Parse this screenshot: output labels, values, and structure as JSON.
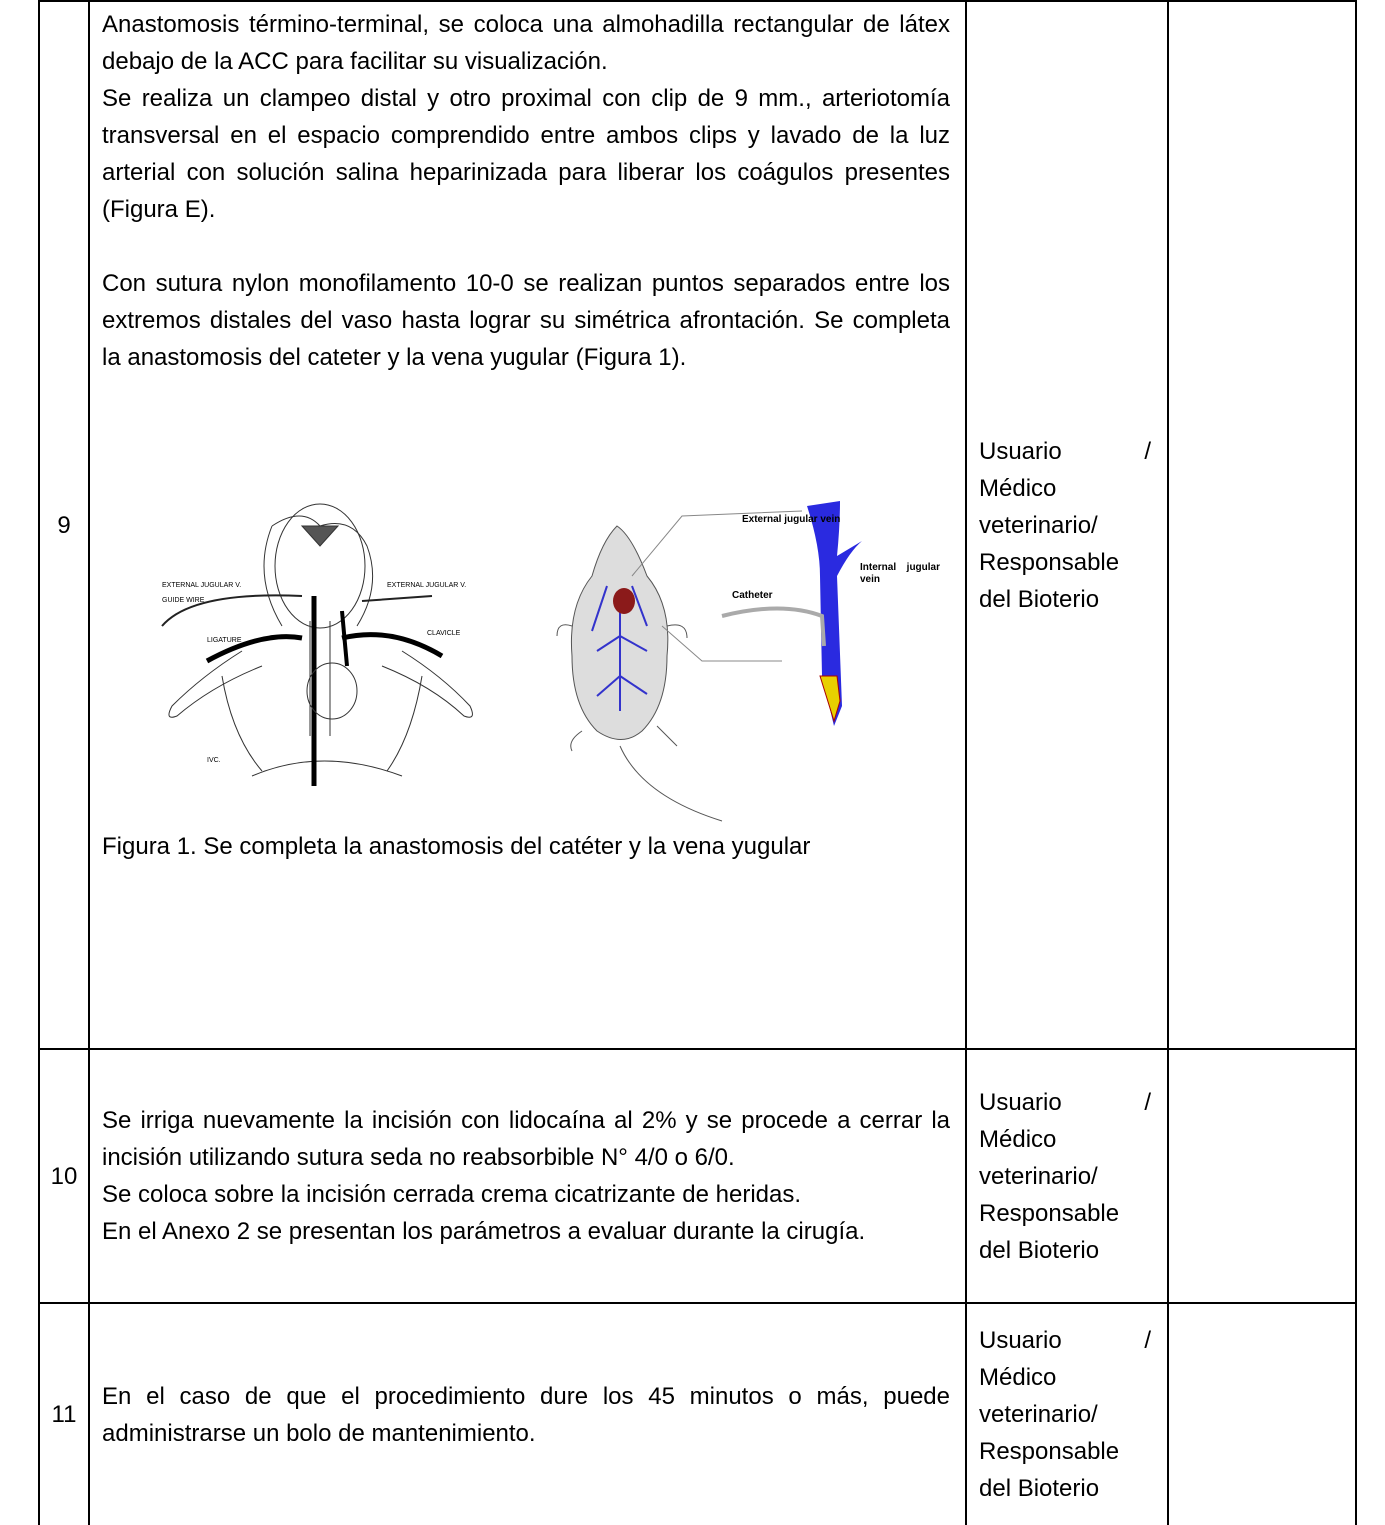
{
  "table": {
    "rows": [
      {
        "number": "9",
        "description": [
          "Anastomosis término-terminal, se coloca una almohadilla rectangular de látex debajo de la ACC para facilitar su visualización.",
          "Se realiza un clampeo distal y otro proximal con clip de 9 mm., arteriotomía transversal en el espacio comprendido entre ambos clips y lavado de la luz arterial con solución salina heparinizada para liberar los coágulos presentes (Figura E).",
          "Con sutura nylon monofilamento 10-0 se realizan puntos separados entre los extremos distales del vaso hasta lograr su simétrica afrontación. Se completa la anastomosis del cateter y la vena yugular (Figura 1)."
        ],
        "figure_labels": [
          "EXTERNAL JUGULAR V.",
          "GUIDE WIRE",
          "LIGATURE",
          "EXTERNAL JUGULAR V.",
          "CLAVICLE",
          "IVC.",
          "External jugular vein",
          "Internal jugular vein",
          "Catheter"
        ],
        "caption": "Figura 1. Se completa la anastomosis del catéter y la vena yugular",
        "responsible": "Usuario / Médico veterinario/ Responsable del Bioterio"
      },
      {
        "number": "10",
        "description": [
          "Se irriga nuevamente la incisión con lidocaína al 2% y se procede a cerrar la incisión utilizando sutura seda no reabsorbible N° 4/0 o 6/0.",
          "Se coloca sobre la incisión cerrada crema cicatrizante de heridas.",
          "En el Anexo 2 se presentan los parámetros a evaluar durante la cirugía."
        ],
        "responsible": "Usuario / Médico veterinario/ Responsable del Bioterio"
      },
      {
        "number": "11",
        "description": [
          "En el caso de que el procedimiento dure los 45 minutos o más, puede administrarse un bolo de mantenimiento."
        ],
        "responsible": "Usuario / Médico veterinario/ Responsable del Bioterio"
      }
    ]
  }
}
